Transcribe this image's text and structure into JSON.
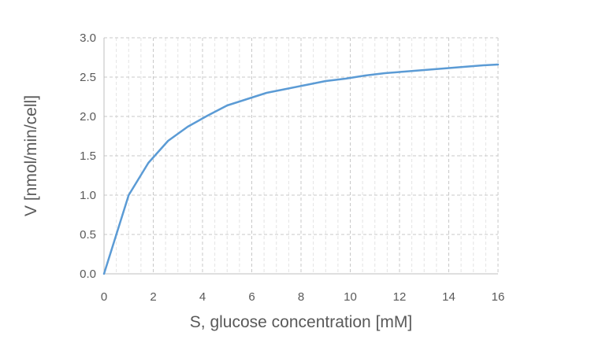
{
  "chart_data": {
    "type": "line",
    "title": "",
    "xlabel": "S, glucose concentration [mM]",
    "ylabel": "V [nmol/min/cell]",
    "xlim": [
      0,
      16
    ],
    "ylim": [
      0,
      3.0
    ],
    "x_ticks": [
      "0",
      "2",
      "4",
      "6",
      "8",
      "10",
      "12",
      "14",
      "16"
    ],
    "y_ticks": [
      "0.0",
      "0.5",
      "1.0",
      "1.5",
      "2.0",
      "2.5",
      "3.0"
    ],
    "grid": true,
    "legend": "none",
    "series": [
      {
        "color": "#5b9bd5",
        "x": [
          0,
          1,
          1.8,
          2.6,
          3.4,
          4.2,
          5,
          5.8,
          6.6,
          7.4,
          8.2,
          9,
          9.8,
          10.6,
          11.4,
          12.2,
          13,
          13.8,
          14.6,
          15.4,
          16
        ],
        "y": [
          0,
          1.0,
          1.41,
          1.69,
          1.87,
          2.01,
          2.14,
          2.22,
          2.3,
          2.35,
          2.4,
          2.45,
          2.48,
          2.52,
          2.55,
          2.57,
          2.59,
          2.61,
          2.63,
          2.65,
          2.66
        ]
      }
    ]
  }
}
